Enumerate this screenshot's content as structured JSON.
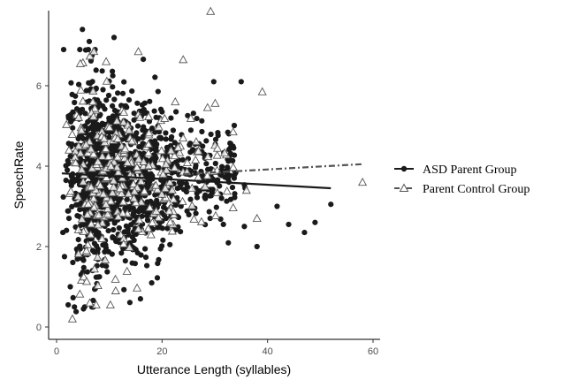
{
  "chart_data": {
    "type": "scatter",
    "xlabel": "Utterance Length (syllables)",
    "ylabel": "SpeechRate",
    "xlim": [
      0,
      61
    ],
    "ylim": [
      -0.2,
      7.8
    ],
    "xticks": [
      0,
      20,
      40,
      60
    ],
    "yticks": [
      0,
      2,
      4,
      6
    ],
    "grid": false,
    "legend_position": "right",
    "series": [
      {
        "name": "ASD Parent Group",
        "marker": "filled-circle",
        "color": "#1a1a1a",
        "trend": {
          "type": "linear",
          "x": [
            1,
            52
          ],
          "y": [
            3.82,
            3.45
          ],
          "style": "solid"
        },
        "extreme_points": [
          {
            "x": 1.2,
            "y": 2.35
          },
          {
            "x": 1.5,
            "y": 1.75
          },
          {
            "x": 2.2,
            "y": 0.55
          },
          {
            "x": 2.6,
            "y": 1.0
          },
          {
            "x": 3.7,
            "y": 0.38
          },
          {
            "x": 5.1,
            "y": 0.45
          },
          {
            "x": 4.9,
            "y": 7.4
          },
          {
            "x": 6.2,
            "y": 7.1
          },
          {
            "x": 7.3,
            "y": 6.9
          },
          {
            "x": 10.9,
            "y": 7.2
          },
          {
            "x": 15.9,
            "y": 0.7
          },
          {
            "x": 29.8,
            "y": 6.1
          },
          {
            "x": 35.0,
            "y": 6.1
          },
          {
            "x": 35.6,
            "y": 2.5
          },
          {
            "x": 41.8,
            "y": 3.0
          },
          {
            "x": 44.0,
            "y": 2.55
          },
          {
            "x": 49.0,
            "y": 2.6
          },
          {
            "x": 52.0,
            "y": 3.05
          },
          {
            "x": 47.0,
            "y": 2.35
          },
          {
            "x": 38.0,
            "y": 2.0
          }
        ]
      },
      {
        "name": "Parent Control Group",
        "marker": "open-triangle",
        "color": "#555555",
        "trend": {
          "type": "linear",
          "x": [
            24,
            58
          ],
          "y": [
            3.8,
            4.05
          ],
          "style": "dashdot"
        },
        "extreme_points": [
          {
            "x": 29.2,
            "y": 7.85
          },
          {
            "x": 3.0,
            "y": 0.2
          },
          {
            "x": 4.5,
            "y": 6.55
          },
          {
            "x": 7.5,
            "y": 0.55
          },
          {
            "x": 9.4,
            "y": 6.6
          },
          {
            "x": 10.2,
            "y": 0.55
          },
          {
            "x": 11.2,
            "y": 0.9
          },
          {
            "x": 15.5,
            "y": 6.85
          },
          {
            "x": 24.0,
            "y": 6.65
          },
          {
            "x": 39.0,
            "y": 5.85
          },
          {
            "x": 58.0,
            "y": 3.6
          },
          {
            "x": 38.0,
            "y": 2.7
          },
          {
            "x": 36.0,
            "y": 3.4
          },
          {
            "x": 22.5,
            "y": 5.6
          },
          {
            "x": 6.3,
            "y": 0.6
          }
        ]
      }
    ]
  }
}
